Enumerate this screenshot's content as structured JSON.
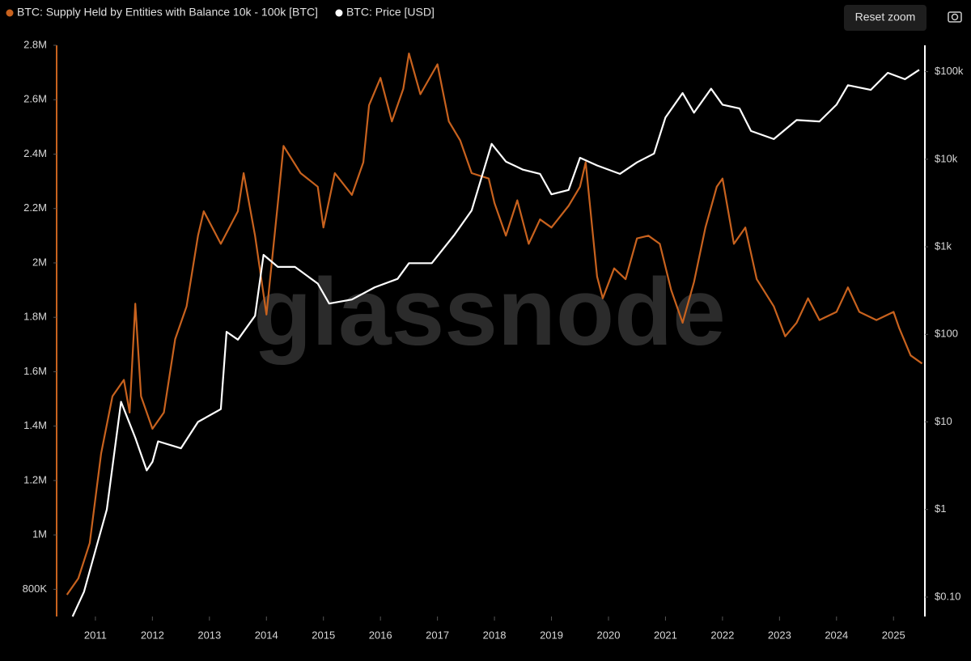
{
  "chart_data": {
    "type": "line",
    "reset_zoom_label": "Reset zoom",
    "watermark": "glassnode",
    "xlim": [
      2010.32,
      2025.55
    ],
    "xticks": [
      2011,
      2012,
      2013,
      2014,
      2015,
      2016,
      2017,
      2018,
      2019,
      2020,
      2021,
      2022,
      2023,
      2024,
      2025
    ],
    "ylim": [
      700000,
      2800000
    ],
    "yticks": [
      {
        "value": 800000,
        "label": "800K"
      },
      {
        "value": 1000000,
        "label": "1M"
      },
      {
        "value": 1200000,
        "label": "1.2M"
      },
      {
        "value": 1400000,
        "label": "1.4M"
      },
      {
        "value": 1600000,
        "label": "1.6M"
      },
      {
        "value": 1800000,
        "label": "1.8M"
      },
      {
        "value": 2000000,
        "label": "2M"
      },
      {
        "value": 2200000,
        "label": "2.2M"
      },
      {
        "value": 2400000,
        "label": "2.4M"
      },
      {
        "value": 2600000,
        "label": "2.6M"
      },
      {
        "value": 2800000,
        "label": "2.8M"
      }
    ],
    "y2lim": [
      0.06,
      200000
    ],
    "y2_log": true,
    "y2ticks": [
      {
        "value": 0.1,
        "label": "$0.10"
      },
      {
        "value": 1,
        "label": "$1"
      },
      {
        "value": 10,
        "label": "$10"
      },
      {
        "value": 100,
        "label": "$100"
      },
      {
        "value": 1000,
        "label": "$1k"
      },
      {
        "value": 10000,
        "label": "$10k"
      },
      {
        "value": 100000,
        "label": "$100k"
      }
    ],
    "grid": false,
    "series": [
      {
        "name": "BTC: Supply Held by Entities with Balance 10k - 100k [BTC]",
        "color": "#c8621e",
        "axis": "y",
        "x": [
          2010.5,
          2010.7,
          2010.9,
          2011.1,
          2011.3,
          2011.5,
          2011.6,
          2011.7,
          2011.8,
          2012.0,
          2012.2,
          2012.4,
          2012.6,
          2012.8,
          2012.9,
          2013.2,
          2013.5,
          2013.6,
          2013.8,
          2014.0,
          2014.2,
          2014.3,
          2014.6,
          2014.9,
          2015.0,
          2015.2,
          2015.5,
          2015.7,
          2015.8,
          2016.0,
          2016.2,
          2016.4,
          2016.5,
          2016.7,
          2017.0,
          2017.2,
          2017.4,
          2017.6,
          2017.9,
          2018.0,
          2018.2,
          2018.4,
          2018.6,
          2018.8,
          2019.0,
          2019.3,
          2019.5,
          2019.6,
          2019.8,
          2019.9,
          2020.1,
          2020.3,
          2020.5,
          2020.7,
          2020.9,
          2021.1,
          2021.3,
          2021.5,
          2021.7,
          2021.9,
          2022.0,
          2022.2,
          2022.4,
          2022.6,
          2022.9,
          2023.1,
          2023.3,
          2023.5,
          2023.7,
          2024.0,
          2024.2,
          2024.4,
          2024.7,
          2025.0,
          2025.1,
          2025.3,
          2025.5
        ],
        "values": [
          780000,
          840000,
          970000,
          1300000,
          1510000,
          1570000,
          1450000,
          1850000,
          1510000,
          1390000,
          1450000,
          1720000,
          1840000,
          2100000,
          2190000,
          2070000,
          2190000,
          2330000,
          2100000,
          1810000,
          2220000,
          2430000,
          2330000,
          2280000,
          2130000,
          2330000,
          2250000,
          2370000,
          2580000,
          2680000,
          2520000,
          2640000,
          2770000,
          2620000,
          2730000,
          2520000,
          2450000,
          2330000,
          2310000,
          2220000,
          2100000,
          2230000,
          2070000,
          2160000,
          2130000,
          2210000,
          2280000,
          2370000,
          1950000,
          1870000,
          1980000,
          1940000,
          2090000,
          2100000,
          2070000,
          1900000,
          1780000,
          1930000,
          2130000,
          2280000,
          2310000,
          2070000,
          2130000,
          1940000,
          1840000,
          1730000,
          1780000,
          1870000,
          1790000,
          1820000,
          1910000,
          1820000,
          1790000,
          1820000,
          1760000,
          1660000,
          1630000
        ]
      },
      {
        "name": "BTC: Price [USD]",
        "color": "#ffffff",
        "axis": "y2",
        "x": [
          2010.6,
          2010.8,
          2011.0,
          2011.2,
          2011.45,
          2011.7,
          2011.9,
          2012.0,
          2012.1,
          2012.5,
          2012.8,
          2013.2,
          2013.3,
          2013.5,
          2013.8,
          2013.95,
          2014.2,
          2014.5,
          2014.9,
          2015.1,
          2015.5,
          2015.9,
          2016.3,
          2016.5,
          2016.9,
          2017.3,
          2017.6,
          2017.95,
          2018.2,
          2018.5,
          2018.8,
          2019.0,
          2019.3,
          2019.5,
          2019.8,
          2020.2,
          2020.5,
          2020.8,
          2021.0,
          2021.3,
          2021.5,
          2021.8,
          2022.0,
          2022.3,
          2022.5,
          2022.9,
          2023.3,
          2023.7,
          2024.0,
          2024.2,
          2024.6,
          2024.9,
          2025.2,
          2025.45
        ],
        "values": [
          0.06,
          0.115,
          0.34,
          1,
          17,
          6.6,
          2.8,
          3.5,
          6,
          5,
          10,
          14,
          107,
          87,
          163,
          810,
          590,
          590,
          380,
          225,
          250,
          345,
          430,
          650,
          650,
          1380,
          2600,
          15000,
          9400,
          7600,
          6800,
          3970,
          4460,
          10400,
          8500,
          6800,
          9200,
          11600,
          30000,
          57000,
          34000,
          64000,
          42000,
          38000,
          21000,
          17000,
          28000,
          27000,
          42000,
          70000,
          62000,
          97000,
          82000,
          105000
        ]
      }
    ]
  }
}
